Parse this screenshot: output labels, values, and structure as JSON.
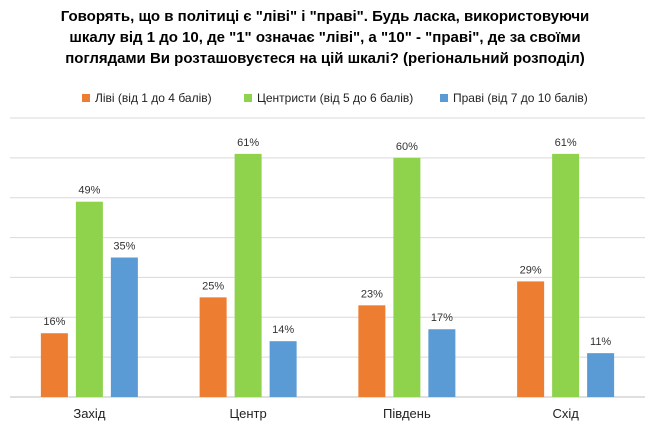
{
  "title_lines": [
    "Говорять, що в політиці є \"ліві\" і \"праві\". Будь ласка, використовуючи",
    "шкалу від 1 до 10, де \"1\" означає \"ліві\", а \"10\" - \"праві\",  де за своїми",
    "поглядами Ви розташовуєтеся на цій шкалі? (регіональний розподіл)"
  ],
  "chart_data": {
    "type": "bar",
    "title": "Говорять, що в політиці є \"ліві\" і \"праві\". Будь ласка, використовуючи шкалу від 1 до 10, де \"1\" означає \"ліві\", а \"10\" - \"праві\",  де за своїми поглядами Ви розташовуєтеся на цій шкалі? (регіональний розподіл)",
    "categories": [
      "Захід",
      "Центр",
      "Південь",
      "Схід"
    ],
    "series": [
      {
        "name": "Ліві (від 1 до 4 балів)",
        "color": "#ED7D31",
        "values": [
          16,
          25,
          23,
          29
        ],
        "labels": [
          "16%",
          "25%",
          "23%",
          "29%"
        ]
      },
      {
        "name": "Центристи (від 5 до 6 балів)",
        "color": "#8ED34B",
        "values": [
          49,
          61,
          60,
          61
        ],
        "labels": [
          "49%",
          "61%",
          "60%",
          "61%"
        ]
      },
      {
        "name": "Праві (від 7 до 10 балів)",
        "color": "#5B9BD5",
        "values": [
          35,
          14,
          17,
          11
        ],
        "labels": [
          "35%",
          "14%",
          "17%",
          "11%"
        ]
      }
    ],
    "ylim": [
      0,
      70
    ],
    "grid": true,
    "legend_position": "top",
    "xlabel": "",
    "ylabel": ""
  }
}
